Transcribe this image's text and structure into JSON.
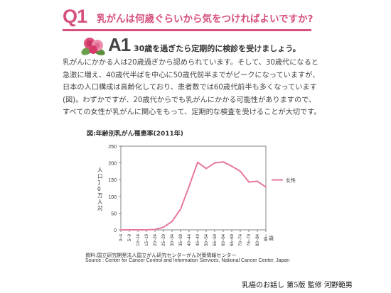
{
  "question": {
    "num": "Q1",
    "text": "乳がんは何歳ぐらいから気をつければよいですか?"
  },
  "answer": {
    "num": "A1",
    "text": "30歳を過ぎたら定期的に検診を受けましょう。"
  },
  "body_lines": [
    "乳がんにかかる人は20歳過ぎから認められています。そして、30歳代になると",
    "急激に増え、40歳代半ばを中心に50歳代前半までがピークになっていますが、",
    "日本の人口構成は高齢化しており、患者数では60歳代前半も多くなっています",
    "(図)。わずかですが、20歳代からでも乳がんにかかる可能性がありますので、",
    "すべての女性が乳がんに関心をもって、定期的な検査を受けることが大切です。"
  ],
  "figure": {
    "title": "図:年齢別乳がん罹患率(2011年)"
  },
  "chart_data": {
    "type": "line",
    "ylabel": "人口10万人対",
    "ylim": [
      0,
      250
    ],
    "yticks": [
      0,
      50,
      100,
      150,
      200,
      250
    ],
    "x_unit_label": "歳",
    "categories": [
      "0~4",
      "5~9",
      "10~14",
      "15~19",
      "20~24",
      "25~29",
      "30~34",
      "35~39",
      "40~44",
      "45~49",
      "50~54",
      "55~59",
      "60~64",
      "65~69",
      "70~74",
      "75~79",
      "80~84",
      "85~"
    ],
    "series": [
      {
        "name": "女性",
        "color": "#e8779f",
        "values": [
          0,
          0,
          0,
          0,
          1,
          8,
          25,
          62,
          130,
          202,
          183,
          200,
          203,
          190,
          175,
          143,
          145,
          128
        ]
      }
    ],
    "grid": false,
    "legend": "right"
  },
  "source": {
    "jp": "資料:国立研究開発法人国立がん研究センターがん対策情報センター",
    "en": "Source : Center for Cancer Control and Information Services, National Cancer Center, Japan"
  },
  "footer": "乳癌のお話し 第5版 監修 河野範男",
  "colors": {
    "accent": "#d6517f",
    "line": "#e8779f"
  }
}
